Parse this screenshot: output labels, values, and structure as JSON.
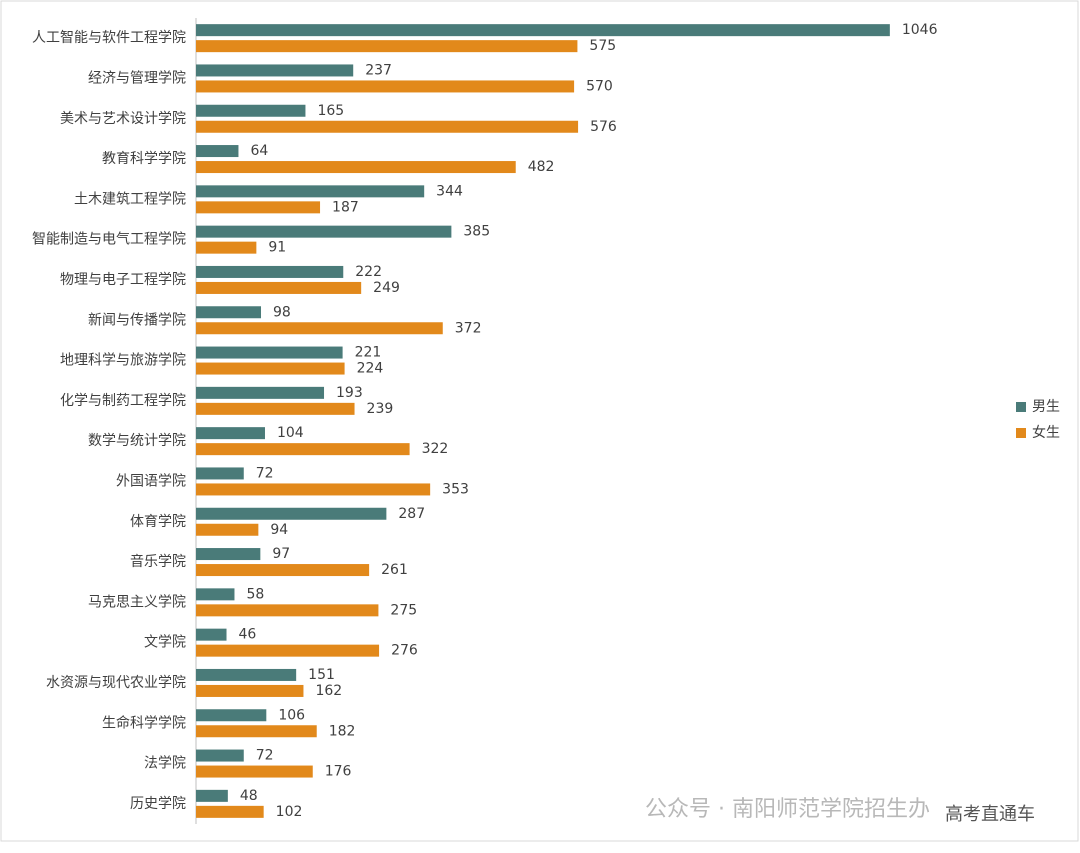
{
  "chart_data": {
    "type": "hbar",
    "categories": [
      "人工智能与软件工程学院",
      "经济与管理学院",
      "美术与艺术设计学院",
      "教育科学学院",
      "土木建筑工程学院",
      "智能制造与电气工程学院",
      "物理与电子工程学院",
      "新闻与传播学院",
      "地理科学与旅游学院",
      "化学与制药工程学院",
      "数学与统计学院",
      "外国语学院",
      "体育学院",
      "音乐学院",
      "马克思主义学院",
      "文学院",
      "水资源与现代农业学院",
      "生命科学学院",
      "法学院",
      "历史学院"
    ],
    "series": [
      {
        "name": "男生",
        "color": "#4a7b79",
        "values": [
          1046,
          237,
          165,
          64,
          344,
          385,
          222,
          98,
          221,
          193,
          104,
          72,
          287,
          97,
          58,
          46,
          151,
          106,
          72,
          48
        ]
      },
      {
        "name": "女生",
        "color": "#e2891b",
        "values": [
          575,
          570,
          576,
          482,
          187,
          91,
          249,
          372,
          224,
          239,
          322,
          353,
          94,
          261,
          275,
          276,
          162,
          182,
          176,
          102
        ]
      }
    ],
    "xlim": [
      0,
      1200
    ],
    "annotations": [
      "公众号 · 南阳师范学院招生办",
      "高考直通车"
    ]
  }
}
